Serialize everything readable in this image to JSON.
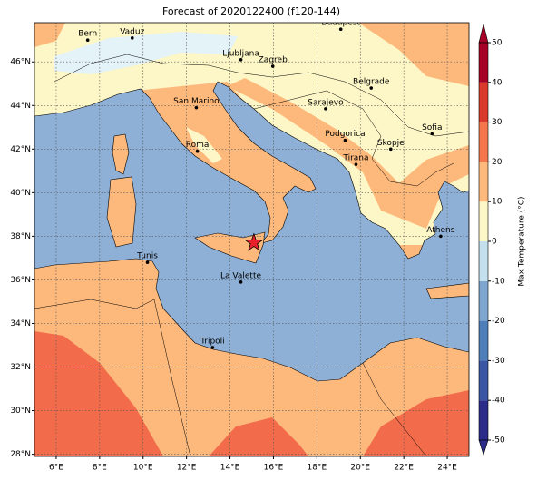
{
  "title": "Forecast of 2020122400 (f120-144)",
  "map": {
    "xlim": [
      5,
      25
    ],
    "ylim": [
      27.9,
      47.8
    ],
    "xticks": [
      {
        "value": 6,
        "label": "6°E"
      },
      {
        "value": 8,
        "label": "8°E"
      },
      {
        "value": 10,
        "label": "10°E"
      },
      {
        "value": 12,
        "label": "12°E"
      },
      {
        "value": 14,
        "label": "14°E"
      },
      {
        "value": 16,
        "label": "16°E"
      },
      {
        "value": 18,
        "label": "18°E"
      },
      {
        "value": 20,
        "label": "20°E"
      },
      {
        "value": 22,
        "label": "22°E"
      },
      {
        "value": 24,
        "label": "24°E"
      }
    ],
    "yticks": [
      {
        "value": 28,
        "label": "28°N"
      },
      {
        "value": 30,
        "label": "30°N"
      },
      {
        "value": 32,
        "label": "32°N"
      },
      {
        "value": 34,
        "label": "34°N"
      },
      {
        "value": 36,
        "label": "36°N"
      },
      {
        "value": 38,
        "label": "38°N"
      },
      {
        "value": 40,
        "label": "40°N"
      },
      {
        "value": 42,
        "label": "42°N"
      },
      {
        "value": 44,
        "label": "44°N"
      },
      {
        "value": 46,
        "label": "46°N"
      }
    ],
    "grid": true,
    "cities": [
      {
        "name": "Bern",
        "lon": 7.45,
        "lat": 47.0
      },
      {
        "name": "Vaduz",
        "lon": 9.5,
        "lat": 47.1
      },
      {
        "name": "Budapest",
        "lon": 19.1,
        "lat": 47.5
      },
      {
        "name": "Ljubljana",
        "lon": 14.5,
        "lat": 46.1
      },
      {
        "name": "Zagreb",
        "lon": 15.97,
        "lat": 45.8
      },
      {
        "name": "San Marino",
        "lon": 12.45,
        "lat": 43.9
      },
      {
        "name": "Belgrade",
        "lon": 20.5,
        "lat": 44.8
      },
      {
        "name": "Sarajevo",
        "lon": 18.4,
        "lat": 43.85
      },
      {
        "name": "Sofia",
        "lon": 23.3,
        "lat": 42.7
      },
      {
        "name": "Roma",
        "lon": 12.5,
        "lat": 41.9
      },
      {
        "name": "Podgorica",
        "lon": 19.3,
        "lat": 42.4
      },
      {
        "name": "Skopje",
        "lon": 21.4,
        "lat": 42.0
      },
      {
        "name": "Tirana",
        "lon": 19.8,
        "lat": 41.3
      },
      {
        "name": "Athens",
        "lon": 23.7,
        "lat": 38.0
      },
      {
        "name": "Tunis",
        "lon": 10.2,
        "lat": 36.8
      },
      {
        "name": "La Valette",
        "lon": 14.5,
        "lat": 35.9
      },
      {
        "name": "Tripoli",
        "lon": 13.2,
        "lat": 32.9
      }
    ],
    "star": {
      "lon": 15.1,
      "lat": 37.7
    }
  },
  "colorbar": {
    "label": "Max Temperature (°C)",
    "lim": [
      -50,
      50
    ],
    "ticks": [
      -50,
      -40,
      -30,
      -20,
      -10,
      0,
      10,
      20,
      30,
      40,
      50
    ],
    "colors": [
      "#2b2c8a",
      "#3b56a4",
      "#4f7fb9",
      "#7fa6cf",
      "#c4e0ee",
      "#fdf6c6",
      "#fdb97c",
      "#f4774c",
      "#d93a2b",
      "#a50026"
    ]
  }
}
